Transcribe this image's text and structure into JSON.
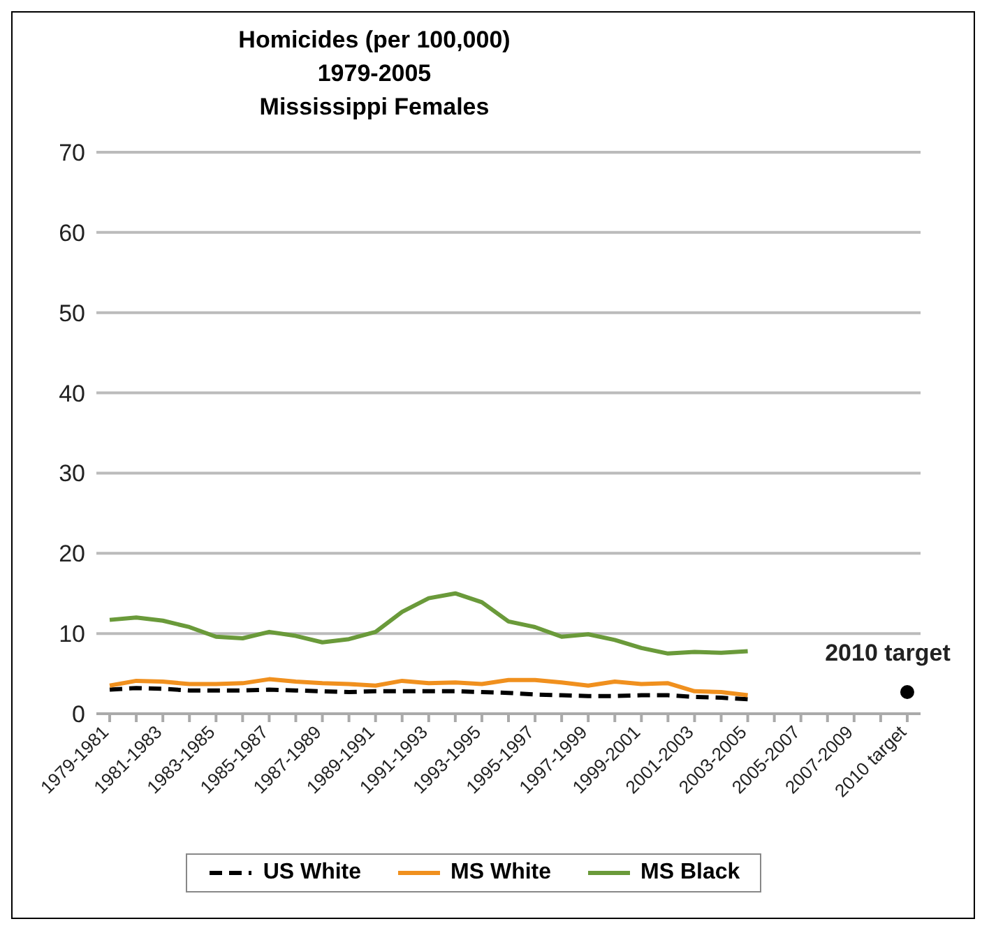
{
  "chart_data": {
    "type": "line",
    "title": "Homicides (per 100,000)\n1979-2005\nMississippi Females",
    "categories": [
      "1979-1981",
      null,
      "1981-1983",
      null,
      "1983-1985",
      null,
      "1985-1987",
      null,
      "1987-1989",
      null,
      "1989-1991",
      null,
      "1991-1993",
      null,
      "1993-1995",
      null,
      "1995-1997",
      null,
      "1997-1999",
      null,
      "1999-2001",
      null,
      "2001-2003",
      null,
      "2003-2005",
      null,
      "2005-2007",
      null,
      "2007-2009",
      null,
      "2010 target"
    ],
    "series": [
      {
        "name": "US White",
        "color": "#000000",
        "line_style": "dashed",
        "values": [
          3.0,
          3.2,
          3.1,
          2.9,
          2.9,
          2.9,
          3.0,
          2.9,
          2.8,
          2.7,
          2.8,
          2.8,
          2.8,
          2.8,
          2.7,
          2.6,
          2.4,
          2.3,
          2.2,
          2.2,
          2.3,
          2.3,
          2.1,
          2.0,
          1.8,
          null,
          null,
          null,
          null,
          null,
          null
        ]
      },
      {
        "name": "MS White",
        "color": "#f0901e",
        "line_style": "solid",
        "values": [
          3.5,
          4.1,
          4.0,
          3.7,
          3.7,
          3.8,
          4.3,
          4.0,
          3.8,
          3.7,
          3.5,
          4.1,
          3.8,
          3.9,
          3.7,
          4.2,
          4.2,
          3.9,
          3.5,
          4.0,
          3.7,
          3.8,
          2.8,
          2.7,
          2.3,
          null,
          null,
          null,
          null,
          null,
          null
        ]
      },
      {
        "name": "MS Black",
        "color": "#6a9a3a",
        "line_style": "solid",
        "values": [
          11.7,
          12.0,
          11.6,
          10.8,
          9.6,
          9.4,
          10.2,
          9.7,
          8.9,
          9.3,
          10.2,
          12.7,
          14.4,
          15.0,
          13.9,
          11.5,
          10.8,
          9.6,
          9.9,
          9.2,
          8.2,
          7.5,
          7.7,
          7.6,
          7.8,
          null,
          null,
          null,
          null,
          null,
          null
        ]
      },
      {
        "name": "2010 target",
        "type": "scatter",
        "color": "#000000",
        "marker": "circle",
        "values": [
          null,
          null,
          null,
          null,
          null,
          null,
          null,
          null,
          null,
          null,
          null,
          null,
          null,
          null,
          null,
          null,
          null,
          null,
          null,
          null,
          null,
          null,
          null,
          null,
          null,
          null,
          null,
          null,
          null,
          null,
          2.7
        ]
      }
    ],
    "ylim": [
      0,
      70
    ],
    "yticks": [
      0,
      10,
      20,
      30,
      40,
      50,
      60,
      70
    ],
    "grid": "y",
    "legend": "bottom"
  }
}
